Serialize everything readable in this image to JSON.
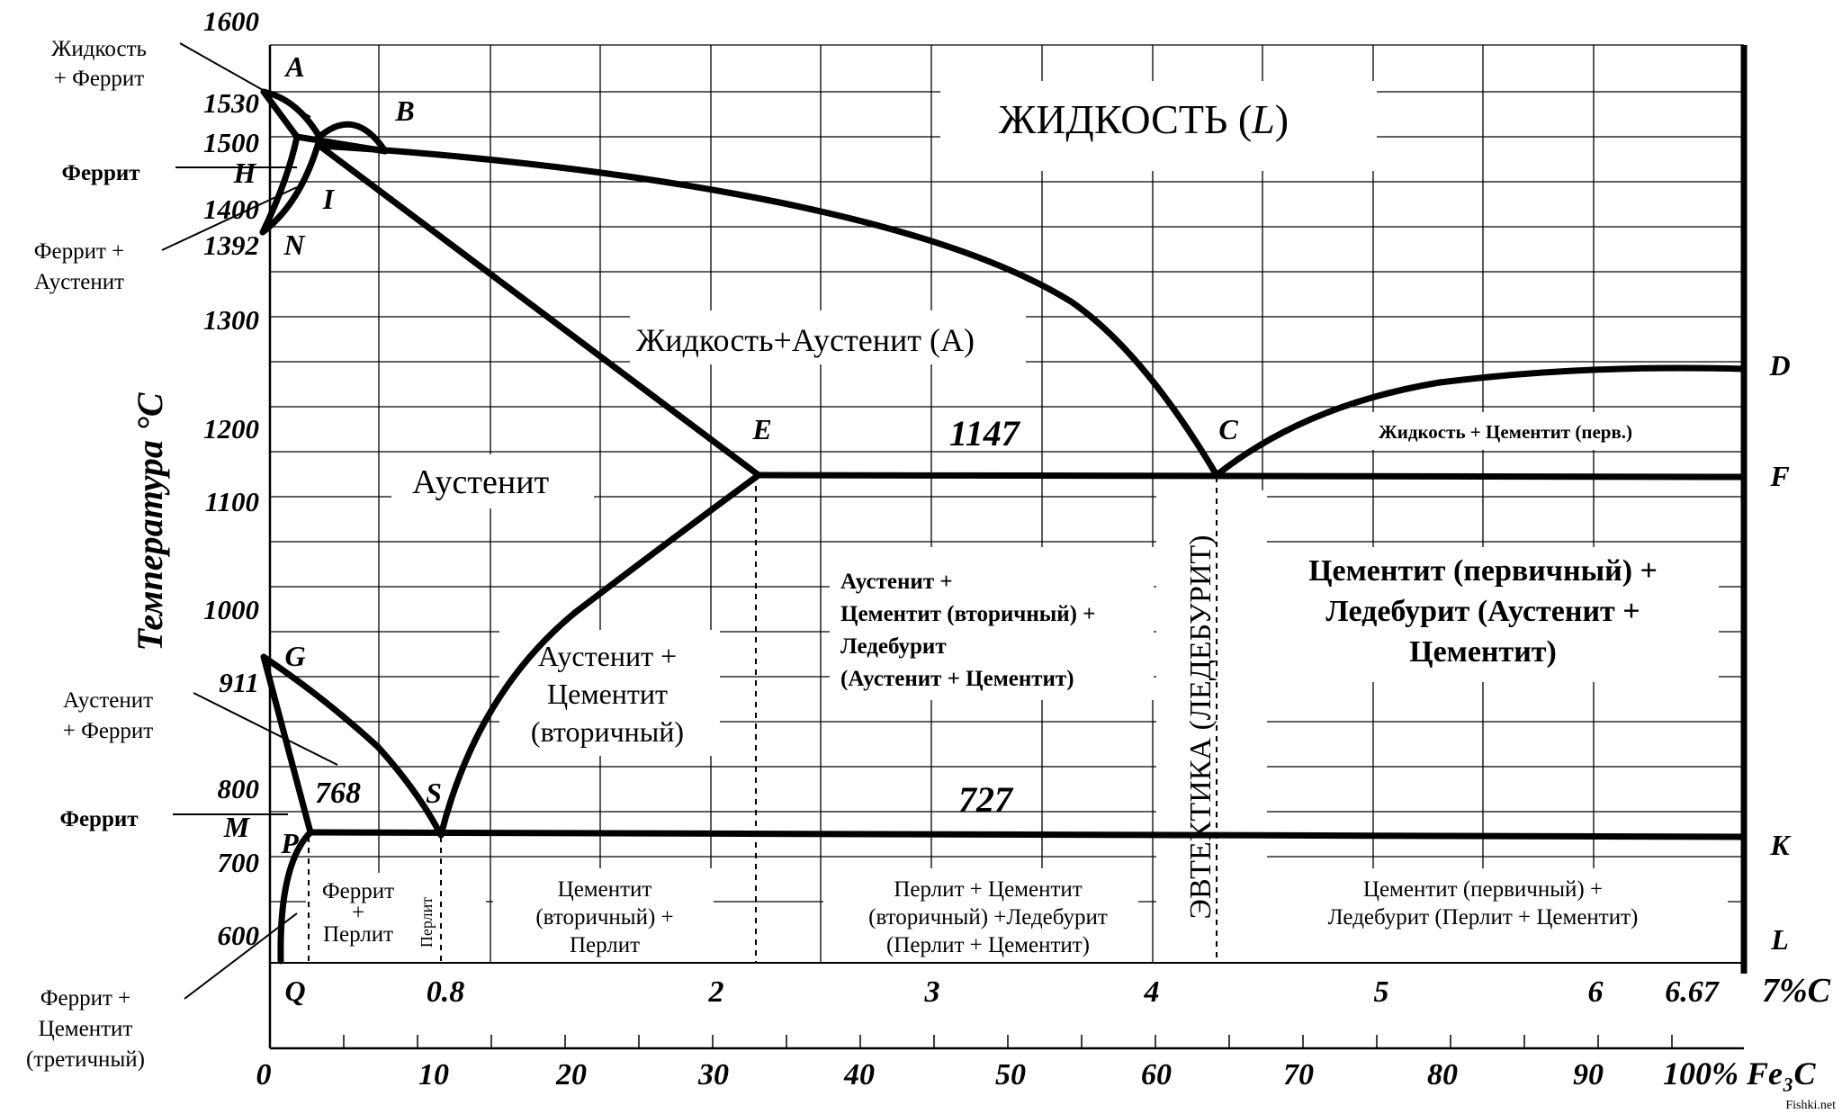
{
  "temperature_axis": {
    "title": "Температура °C",
    "ticks": [
      {
        "value": 1600,
        "label": "1600"
      },
      {
        "value": 1530,
        "label": "1530"
      },
      {
        "value": 1500,
        "label": "1500"
      },
      {
        "value": 1400,
        "label": "1400"
      },
      {
        "value": 1392,
        "label": "1392"
      },
      {
        "value": 1300,
        "label": "1300"
      },
      {
        "value": 1200,
        "label": "1200"
      },
      {
        "value": 1100,
        "label": "1100"
      },
      {
        "value": 1000,
        "label": "1000"
      },
      {
        "value": 911,
        "label": "911"
      },
      {
        "value": 800,
        "label": "800"
      },
      {
        "value": 700,
        "label": "700"
      },
      {
        "value": 600,
        "label": "600"
      }
    ]
  },
  "carbon_axis": {
    "unit_label": "7%C",
    "ticks": [
      {
        "value": 0.8,
        "label": "0.8"
      },
      {
        "value": 2,
        "label": "2"
      },
      {
        "value": 3,
        "label": "3"
      },
      {
        "value": 4,
        "label": "4"
      },
      {
        "value": 5,
        "label": "5"
      },
      {
        "value": 6,
        "label": "6"
      },
      {
        "value": 6.67,
        "label": "6.67"
      }
    ]
  },
  "cementite_axis": {
    "unit_label": "100% Fe₃C",
    "ticks": [
      {
        "value": 0,
        "label": "0"
      },
      {
        "value": 10,
        "label": "10"
      },
      {
        "value": 20,
        "label": "20"
      },
      {
        "value": 30,
        "label": "30"
      },
      {
        "value": 40,
        "label": "40"
      },
      {
        "value": 50,
        "label": "50"
      },
      {
        "value": 60,
        "label": "60"
      },
      {
        "value": 70,
        "label": "70"
      },
      {
        "value": 80,
        "label": "80"
      },
      {
        "value": 90,
        "label": "90"
      }
    ]
  },
  "points": {
    "A": {
      "label": "A",
      "c": 0,
      "t": 1539
    },
    "B": {
      "label": "B",
      "c": 0.51,
      "t": 1499
    },
    "H": {
      "label": "H",
      "c": 0.1,
      "t": 1499
    },
    "I": {
      "label": "I",
      "c": 0.16,
      "t": 1499
    },
    "N": {
      "label": "N",
      "c": 0,
      "t": 1392
    },
    "E": {
      "label": "E",
      "c": 2.14,
      "t": 1147
    },
    "C": {
      "label": "C",
      "c": 4.3,
      "t": 1147
    },
    "D": {
      "label": "D",
      "c": 6.67,
      "t": 1250
    },
    "F": {
      "label": "F",
      "c": 6.67,
      "t": 1147
    },
    "G": {
      "label": "G",
      "c": 0,
      "t": 911
    },
    "S": {
      "label": "S",
      "c": 0.8,
      "t": 727
    },
    "P": {
      "label": "P",
      "c": 0.02,
      "t": 727
    },
    "M": {
      "label": "M",
      "c": 0,
      "t": 768
    },
    "K": {
      "label": "K",
      "c": 6.67,
      "t": 727
    },
    "L": {
      "label": "L",
      "c": 6.67,
      "t": 600
    },
    "Q": {
      "label": "Q",
      "c": 0.006,
      "t": 600
    }
  },
  "isotherms": {
    "t1147": "1147",
    "t727": "727",
    "t768": "768"
  },
  "regions": {
    "liquid": "ЖИДКОСТЬ (",
    "liquid_symbol": "L",
    "liquid_close": ")",
    "liquid_austenite": "Жидкость+Аустенит (А)",
    "liquid_cementite": "Жидкость + Цементит (перв.)",
    "austenite": "Аустенит",
    "austenite_cementite": [
      "Аустенит +",
      "Цементит",
      "(вторичный)"
    ],
    "hypoeutectic_high": [
      "Аустенит +",
      "Цементит (вторичный) +",
      "Ледебурит",
      "(Аустенит + Цементит)"
    ],
    "hypereutectic_high": [
      "Цементит (первичный) +",
      "Ледебурит (Аустенит +",
      "Цементит)"
    ],
    "eutectic_band": "ЭВТЕКТИКА (ЛЕДЕБУРИТ)",
    "ferrite_pearlite": [
      "Феррит",
      "+",
      "Перлит"
    ],
    "pearlite": "Перлит",
    "cementite_pearlite": [
      "Цементит",
      "(вторичный) +",
      "Перлит"
    ],
    "hypoeutectic_low": [
      "Перлит + Цементит",
      "(вторичный) +Ледебурит",
      "(Перлит + Цементит)"
    ],
    "hypereutectic_low": [
      "Цементит (первичный) +",
      "Ледебурит (Перлит + Цементит)"
    ]
  },
  "side_labels": {
    "liquid_ferrite": [
      "Жидкость",
      "+ Феррит"
    ],
    "ferrite_top": "Феррит",
    "ferrite_austenite": [
      "Феррит +",
      "Аустенит"
    ],
    "austenite_ferrite": [
      "Аустенит",
      "+ Феррит"
    ],
    "ferrite_mid": "Феррит",
    "ferrite_cementite": [
      "Феррит +",
      "Цементит",
      "(третичный)"
    ]
  },
  "watermark": "Fishki.net"
}
